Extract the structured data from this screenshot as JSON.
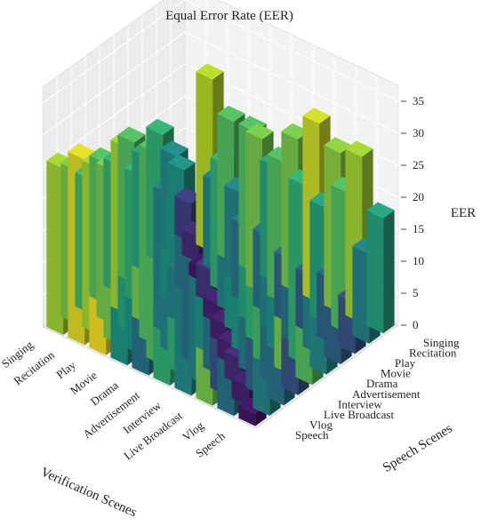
{
  "chart_data": {
    "type": "bar3d",
    "title": "Equal Error Rate (EER)",
    "xlabel": "Verification Scenes",
    "ylabel": "Speech Scenes",
    "zlabel": "EER",
    "zlim": [
      0,
      35
    ],
    "zticks": [
      "0",
      "5",
      "10",
      "15",
      "20",
      "25",
      "30",
      "35"
    ],
    "x_categories": [
      "Speech",
      "Vlog",
      "Live Broadcast",
      "Interview",
      "Advertisement",
      "Drama",
      "Movie",
      "Play",
      "Recitation",
      "Singing"
    ],
    "y_categories": [
      "Speech",
      "Vlog",
      "Live Broadcast",
      "Interview",
      "Advertisement",
      "Drama",
      "Movie",
      "Play",
      "Recitation",
      "Singing"
    ],
    "colormap": "viridis",
    "grid": true,
    "values": [
      [
        2,
        14,
        12,
        8,
        22,
        15,
        10,
        8,
        14,
        18
      ],
      [
        12,
        3,
        10,
        12,
        24,
        20,
        14,
        10,
        22,
        26
      ],
      [
        24,
        8,
        4,
        13,
        21,
        16,
        12,
        9,
        18,
        25
      ],
      [
        15,
        14,
        12,
        3,
        16,
        20,
        14,
        10,
        20,
        28
      ],
      [
        20,
        20,
        12,
        16,
        3,
        16,
        18,
        12,
        22,
        24
      ],
      [
        12,
        22,
        14,
        14,
        14,
        3,
        14,
        12,
        24,
        18
      ],
      [
        16,
        16,
        22,
        14,
        14,
        12,
        5,
        20,
        14,
        22
      ],
      [
        30,
        24,
        18,
        24,
        22,
        16,
        12,
        2,
        14,
        22
      ],
      [
        29,
        26,
        24,
        26,
        20,
        22,
        14,
        16,
        4,
        27
      ],
      [
        26,
        24,
        21,
        22,
        20,
        22,
        18,
        20,
        15,
        6
      ]
    ]
  }
}
